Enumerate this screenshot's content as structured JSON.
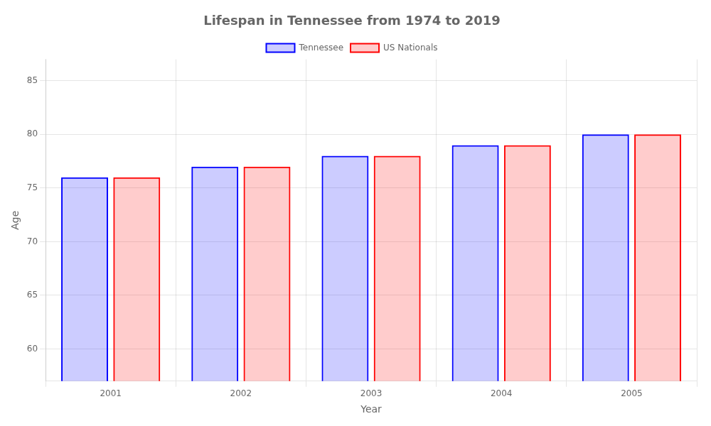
{
  "chart_data": {
    "type": "bar",
    "title": "Lifespan in Tennessee from 1974 to 2019",
    "x_label": "Year",
    "y_label": "Age",
    "categories": [
      "2001",
      "2002",
      "2003",
      "2004",
      "2005"
    ],
    "series": [
      {
        "name": "Tennessee",
        "color": "#0000ff",
        "values": [
          76.0,
          77.0,
          78.0,
          79.0,
          80.0
        ]
      },
      {
        "name": "US Nationals",
        "color": "#ff0000",
        "values": [
          76.0,
          77.0,
          78.0,
          79.0,
          80.0
        ]
      }
    ],
    "ylim": [
      57,
      87
    ],
    "yticks": [
      60,
      65,
      70,
      75,
      80,
      85
    ],
    "grid": true,
    "legend": "top"
  }
}
